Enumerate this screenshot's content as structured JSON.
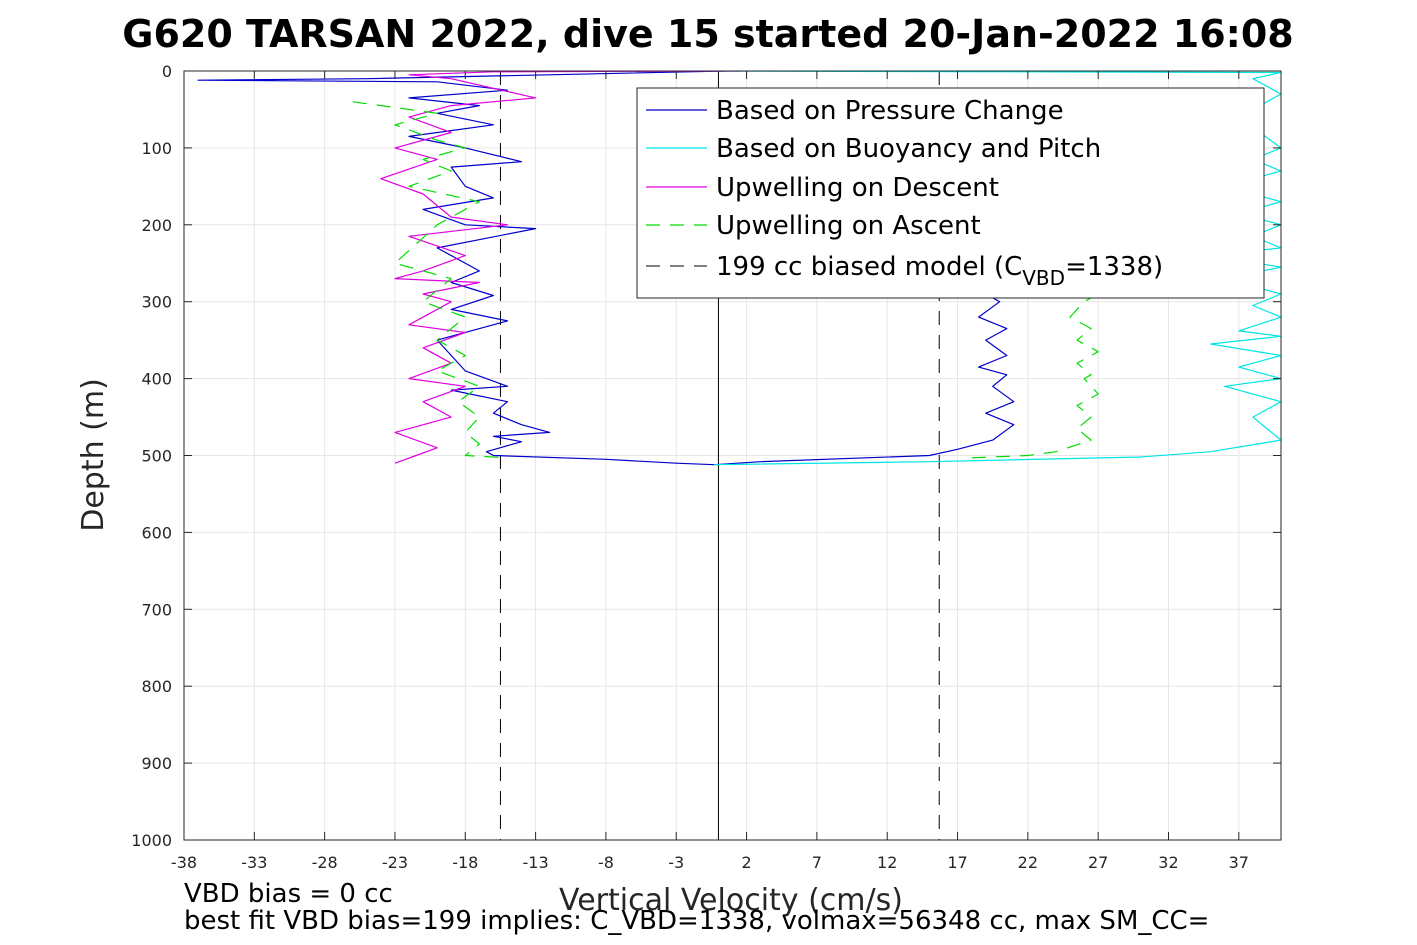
{
  "chart_data": {
    "type": "line",
    "title": "G620 TARSAN 2022, dive 15 started 20-Jan-2022 16:08",
    "xlabel": "Vertical Velocity (cm/s)",
    "ylabel": "Depth (m)",
    "xlim": [
      -38,
      40
    ],
    "ylim": [
      1000,
      0
    ],
    "y_reversed": true,
    "grid": true,
    "legend_position": "top-right",
    "xticks": [
      -38,
      -33,
      -28,
      -23,
      -18,
      -13,
      -8,
      -3,
      2,
      7,
      12,
      17,
      22,
      27,
      32,
      37
    ],
    "xtick_labels": [
      "-38",
      "-33",
      "-28",
      "-23",
      "-18",
      "-13",
      "-8",
      "-3",
      "2",
      "7",
      "12",
      "17",
      "22",
      "27",
      "32",
      "37"
    ],
    "yticks": [
      0,
      100,
      200,
      300,
      400,
      500,
      600,
      700,
      800,
      900,
      1000
    ],
    "ytick_labels": [
      "0",
      "100",
      "200",
      "300",
      "400",
      "500",
      "600",
      "700",
      "800",
      "900",
      "1000"
    ],
    "legend": {
      "entries": [
        {
          "label": "Based on Pressure Change",
          "color": "#0000cc",
          "style": "solid"
        },
        {
          "label": "Based on Buoyancy and Pitch",
          "color": "#00e5e5",
          "style": "solid"
        },
        {
          "label": "Upwelling on Descent",
          "color": "#e000e0",
          "style": "solid"
        },
        {
          "label": "Upwelling on Ascent",
          "color": "#00dd00",
          "style": "dashed"
        }
      ],
      "model_entry": {
        "prefix": "199 cc biased model (C",
        "subscript": "VBD",
        "suffix": "=1338)",
        "color": "#000000",
        "style": "dashed"
      }
    },
    "reference_lines": [
      {
        "x": 0,
        "style": "solid",
        "color": "#000000"
      },
      {
        "x": -15.5,
        "style": "dashed",
        "color": "#000000"
      },
      {
        "x": 15.7,
        "style": "dashed",
        "color": "#000000"
      }
    ],
    "series": [
      {
        "name": "Based on Pressure Change",
        "color": "#0000cc",
        "segments": [
          {
            "x": [
              0.5,
              -25,
              -37,
              -20,
              -15,
              -22,
              -17,
              -20,
              -16,
              -22,
              -18,
              -14,
              -19,
              -18,
              -16,
              -21,
              -18,
              -13,
              -20,
              -17,
              -19,
              -16,
              -19,
              -15,
              -20,
              -18,
              -15,
              -19,
              -15,
              -16,
              -14,
              -12,
              -16,
              -14,
              -16.5,
              -16,
              -8,
              -3,
              -0.3
            ],
            "y": [
              0,
              10,
              12,
              14,
              25,
              35,
              45,
              55,
              70,
              85,
              100,
              118,
              125,
              150,
              165,
              180,
              200,
              205,
              230,
              260,
              275,
              292,
              310,
              325,
              350,
              390,
              410,
              415,
              430,
              445,
              460,
              470,
              475,
              482,
              495,
              500,
              505,
              510,
              512
            ]
          },
          {
            "x": [
              19,
              20,
              18.5,
              20.5,
              19,
              20.5,
              18.5,
              20.5,
              19.5,
              21,
              19,
              21,
              19.5,
              17,
              15,
              3,
              -0.3
            ],
            "y": [
              290,
              300,
              320,
              335,
              350,
              370,
              385,
              395,
              410,
              430,
              445,
              460,
              480,
              492,
              500,
              508,
              512
            ]
          }
        ]
      },
      {
        "name": "Based on Buoyancy and Pitch",
        "color": "#00e5e5",
        "segments": [
          {
            "x": [
              -1,
              40,
              38,
              40,
              37,
              40,
              38,
              40,
              36,
              40,
              37,
              40,
              38,
              40,
              35,
              40,
              36,
              40,
              38,
              40,
              37,
              40,
              35,
              40,
              37,
              40,
              36,
              40,
              38,
              40,
              35,
              30,
              15,
              -0.3
            ],
            "y": [
              0,
              2,
              10,
              30,
              60,
              100,
              115,
              130,
              150,
              170,
              185,
              200,
              215,
              230,
              240,
              255,
              270,
              290,
              305,
              320,
              338,
              345,
              355,
              370,
              385,
              400,
              410,
              430,
              450,
              480,
              495,
              502,
              508,
              512
            ]
          }
        ]
      },
      {
        "name": "Upwelling on Descent",
        "color": "#e000e0",
        "segments": [
          {
            "x": [
              1.5,
              -16,
              -22,
              -19,
              -13,
              -19,
              -22,
              -19,
              -23,
              -20,
              -24,
              -21,
              -19,
              -15,
              -22,
              -18,
              -21,
              -23,
              -17,
              -21,
              -19,
              -22,
              -18,
              -21,
              -19,
              -22,
              -18,
              -21,
              -19,
              -23,
              -20,
              -21.5,
              -23
            ],
            "y": [
              0,
              1,
              5,
              10,
              35,
              45,
              60,
              80,
              100,
              115,
              140,
              160,
              190,
              200,
              215,
              240,
              260,
              270,
              275,
              290,
              300,
              330,
              340,
              360,
              380,
              400,
              410,
              430,
              450,
              470,
              490,
              500,
              510
            ]
          }
        ]
      },
      {
        "name": "Upwelling on Ascent",
        "color": "#00dd00",
        "segments": [
          {
            "x": [
              -26,
              -24,
              -20,
              -23,
              -20,
              -18,
              -21,
              -19,
              -22,
              -17,
              -20,
              -23,
              -19,
              -21,
              -18,
              -20,
              -18,
              -20,
              -17,
              -18.5,
              -17,
              -18,
              -17,
              -18,
              -15
            ],
            "y": [
              40,
              45,
              55,
              70,
              90,
              100,
              115,
              130,
              150,
              170,
              200,
              250,
              270,
              300,
              320,
              350,
              370,
              390,
              410,
              430,
              450,
              470,
              485,
              500,
              503
            ]
          },
          {
            "x": [
              27,
              26,
              25,
              26.5,
              25.5,
              27,
              25.5,
              26.5,
              26,
              27,
              25.5,
              26.5,
              25.5,
              26.5,
              24,
              22,
              18
            ],
            "y": [
              290,
              300,
              320,
              335,
              350,
              365,
              380,
              395,
              400,
              420,
              435,
              450,
              465,
              480,
              495,
              500,
              503
            ]
          }
        ]
      }
    ]
  },
  "footer": {
    "vbd_bias": "VBD bias = 0 cc",
    "best_fit": "best fit VBD bias=199 implies: C_VBD=1338, volmax=56348 cc, max SM_CC="
  }
}
